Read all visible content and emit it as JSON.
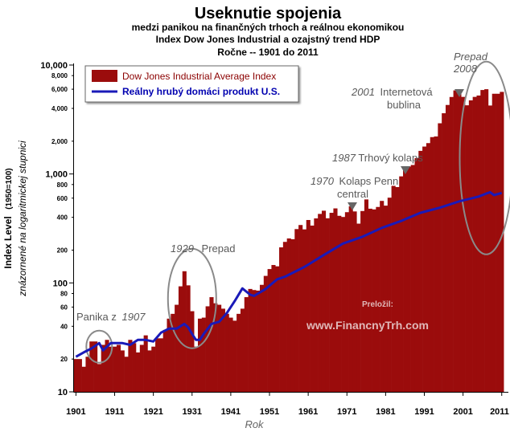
{
  "chart_data": {
    "type": "bar",
    "title": "Useknutie spojenia",
    "subtitle_lines": [
      "medzi  panikou na finančných trhoch a reálnou ekonomikou",
      "Index Dow Jones Industrial a ozajstný trend HDP",
      "Ročne -- 1901 do 2011"
    ],
    "xlabel": "Rok",
    "ylabel_main": "Index Level",
    "ylabel_paren": "(1950=100)",
    "ylabel_note": "znázornené na logaritmickej stupnici",
    "y_scale": "log",
    "ylim": [
      10,
      10000
    ],
    "y_major_ticks": [
      "10",
      "100",
      "1,000",
      "10,000"
    ],
    "y_minor_ticks": [
      "20",
      "40",
      "60",
      "80",
      "200",
      "400",
      "600",
      "800",
      "2,000",
      "4,000",
      "6,000",
      "8,000"
    ],
    "x_ticks": [
      "1901",
      "1911",
      "1921",
      "1931",
      "1941",
      "1951",
      "1961",
      "1971",
      "1981",
      "1991",
      "2001",
      "2011"
    ],
    "legend": {
      "position": "top-left",
      "entries": [
        "Dow Jones Industrial Average Index",
        "Reálny hrubý domáci produkt U.S."
      ]
    },
    "series": [
      {
        "name": "Dow Jones Industrial Average Index",
        "style": "bars",
        "color": "#9b0c0c",
        "x": [
          1901,
          1902,
          1903,
          1904,
          1905,
          1906,
          1907,
          1908,
          1909,
          1910,
          1911,
          1912,
          1913,
          1914,
          1915,
          1916,
          1917,
          1918,
          1919,
          1920,
          1921,
          1922,
          1923,
          1924,
          1925,
          1926,
          1927,
          1928,
          1929,
          1930,
          1931,
          1932,
          1933,
          1934,
          1935,
          1936,
          1937,
          1938,
          1939,
          1940,
          1941,
          1942,
          1943,
          1944,
          1945,
          1946,
          1947,
          1948,
          1949,
          1950,
          1951,
          1952,
          1953,
          1954,
          1955,
          1956,
          1957,
          1958,
          1959,
          1960,
          1961,
          1962,
          1963,
          1964,
          1965,
          1966,
          1967,
          1968,
          1969,
          1970,
          1971,
          1972,
          1973,
          1974,
          1975,
          1976,
          1977,
          1978,
          1979,
          1980,
          1981,
          1982,
          1983,
          1984,
          1985,
          1986,
          1987,
          1988,
          1989,
          1990,
          1991,
          1992,
          1993,
          1994,
          1995,
          1996,
          1997,
          1998,
          1999,
          2000,
          2001,
          2002,
          2003,
          2004,
          2005,
          2006,
          2007,
          2008,
          2009,
          2010,
          2011
        ],
        "values": [
          20,
          20,
          17,
          21,
          29,
          29,
          18,
          27,
          30,
          26,
          26,
          27,
          24,
          21,
          30,
          28,
          23,
          27,
          33,
          24,
          26,
          31,
          31,
          37,
          47,
          52,
          63,
          93,
          128,
          95,
          55,
          26,
          47,
          48,
          61,
          74,
          65,
          63,
          58,
          52,
          48,
          45,
          52,
          58,
          74,
          88,
          86,
          85,
          96,
          116,
          134,
          146,
          142,
          212,
          238,
          256,
          252,
          312,
          340,
          310,
          378,
          336,
          391,
          430,
          460,
          392,
          440,
          483,
          413,
          403,
          446,
          505,
          453,
          350,
          457,
          584,
          480,
          473,
          498,
          566,
          512,
          606,
          778,
          758,
          951,
          1142,
          1170,
          1209,
          1400,
          1630,
          1785,
          1920,
          2180,
          2210,
          2920,
          3610,
          4300,
          5090,
          5850,
          5420,
          5100,
          4270,
          4740,
          5100,
          5250,
          5900,
          6000,
          4250,
          5450,
          5450,
          5670
        ]
      },
      {
        "name": "Reálny hrubý domáci produkt U.S.",
        "style": "line",
        "color": "#1a1ab8",
        "x": [
          1901,
          1903,
          1905,
          1907,
          1908,
          1910,
          1913,
          1915,
          1917,
          1919,
          1921,
          1923,
          1925,
          1927,
          1929,
          1930,
          1931,
          1932,
          1933,
          1934,
          1936,
          1938,
          1940,
          1942,
          1944,
          1946,
          1947,
          1950,
          1953,
          1955,
          1960,
          1965,
          1970,
          1975,
          1980,
          1985,
          1990,
          1995,
          2000,
          2005,
          2007,
          2008,
          2009,
          2011
        ],
        "values": [
          21,
          23,
          25,
          28,
          24,
          28,
          28,
          27,
          30,
          30,
          29,
          35,
          38,
          38,
          42,
          39,
          34,
          30,
          30,
          34,
          42,
          44,
          53,
          68,
          89,
          78,
          76,
          88,
          108,
          114,
          140,
          180,
          230,
          265,
          320,
          370,
          440,
          490,
          560,
          620,
          660,
          680,
          640,
          670
        ]
      }
    ],
    "annotations": [
      {
        "text": "Panika z",
        "year_text": "1907",
        "x": 1907
      },
      {
        "text": "Prepad",
        "year_text": "1929",
        "x": 1929
      },
      {
        "text": "Kolaps Penn",
        "text2": "central",
        "year_text": "1970",
        "x": 1971
      },
      {
        "text": "Trhový kolaps",
        "year_text": "1987",
        "x": 1987
      },
      {
        "text": "Internetová",
        "text2": "bublina",
        "year_text": "2001",
        "x": 2000
      },
      {
        "text": "Prepad",
        "year_text": "2008",
        "x": 2008
      }
    ],
    "watermark": {
      "line1": "Preložil:",
      "line2": "www.FinancnyTrh.com"
    },
    "grid": false
  }
}
